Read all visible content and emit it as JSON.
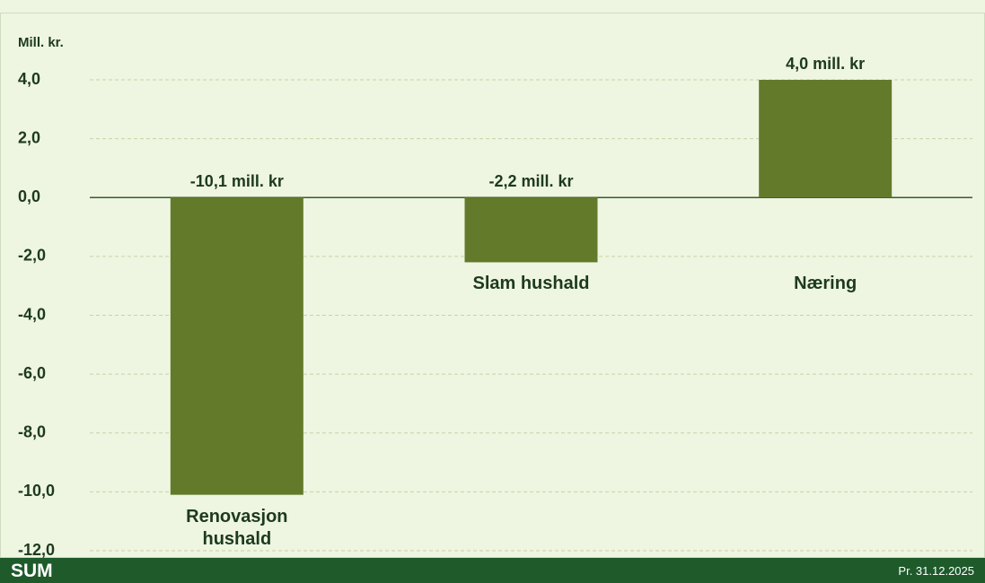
{
  "chart_data": {
    "type": "bar",
    "y_axis_label": "Mill. kr.",
    "categories": [
      "Renovasjon hushald",
      "Slam hushald",
      "Næring"
    ],
    "values": [
      -10.1,
      -2.2,
      4.0
    ],
    "value_labels": [
      "-10,1 mill. kr",
      "-2,2 mill. kr",
      "4,0 mill. kr"
    ],
    "color": "#647a2b",
    "ylim": [
      -12,
      4
    ],
    "yticks": [
      {
        "value": 4,
        "label": "4,0"
      },
      {
        "value": 2,
        "label": "2,0"
      },
      {
        "value": 0,
        "label": "0,0"
      },
      {
        "value": -2,
        "label": "-2,0"
      },
      {
        "value": -4,
        "label": "-4,0"
      },
      {
        "value": -6,
        "label": "-6,0"
      },
      {
        "value": -8,
        "label": "-8,0"
      },
      {
        "value": -10,
        "label": "-10,0"
      },
      {
        "value": -12,
        "label": "-12,0"
      }
    ],
    "grid": true
  },
  "footer": {
    "left": "SUM",
    "right": "Pr. 31.12.2025"
  }
}
